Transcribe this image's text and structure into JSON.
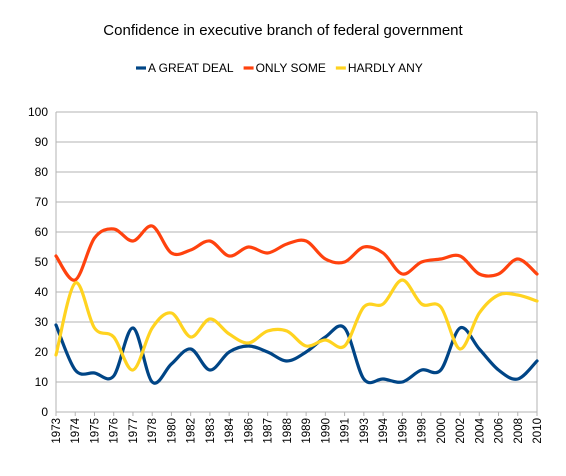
{
  "chart_data": {
    "type": "line",
    "title": "Confidence in executive branch of federal government",
    "xlabel": "",
    "ylabel": "",
    "ylim": [
      0,
      100
    ],
    "yticks": [
      0,
      10,
      20,
      30,
      40,
      50,
      60,
      70,
      80,
      90,
      100
    ],
    "grid": true,
    "legend": "top",
    "categories": [
      "1973",
      "1974",
      "1975",
      "1976",
      "1977",
      "1978",
      "1980",
      "1982",
      "1983",
      "1984",
      "1986",
      "1987",
      "1988",
      "1989",
      "1990",
      "1991",
      "1993",
      "1994",
      "1996",
      "1998",
      "2000",
      "2002",
      "2004",
      "2006",
      "2008",
      "2010"
    ],
    "series": [
      {
        "name": "A GREAT DEAL",
        "color": "#004586",
        "values": [
          29,
          14,
          13,
          12,
          28,
          10,
          16,
          21,
          14,
          20,
          22,
          20,
          17,
          20,
          25,
          28,
          11,
          11,
          10,
          14,
          14,
          28,
          21,
          14,
          11,
          17
        ]
      },
      {
        "name": "ONLY SOME",
        "color": "#ff420e",
        "values": [
          52,
          44,
          58,
          61,
          57,
          62,
          53,
          54,
          57,
          52,
          55,
          53,
          56,
          57,
          51,
          50,
          55,
          53,
          46,
          50,
          51,
          52,
          46,
          46,
          51,
          46
        ]
      },
      {
        "name": "HARDLY ANY",
        "color": "#ffd320",
        "values": [
          19,
          43,
          28,
          25,
          14,
          28,
          33,
          25,
          31,
          26,
          23,
          27,
          27,
          22,
          24,
          22,
          35,
          36,
          44,
          36,
          35,
          21,
          33,
          39,
          39,
          37
        ]
      }
    ]
  }
}
